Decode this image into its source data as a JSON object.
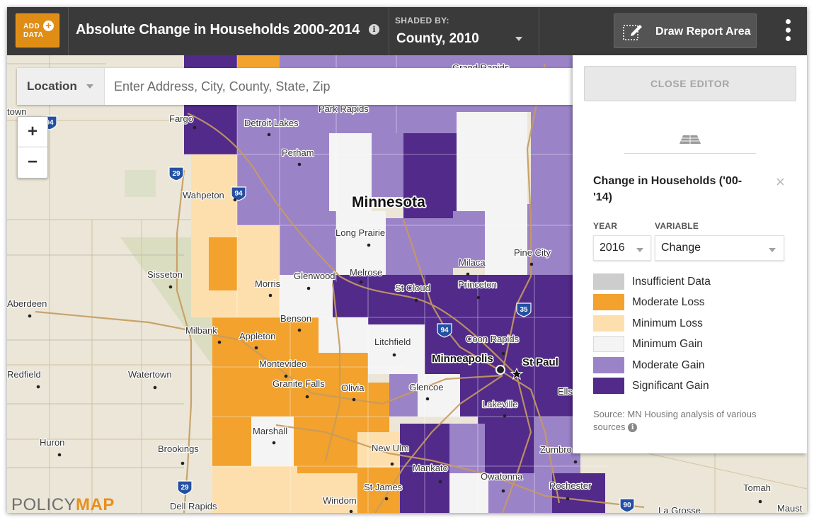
{
  "header": {
    "add_data": {
      "line1": "ADD",
      "line2": "DATA"
    },
    "title": "Absolute Change in Households 2000-2014",
    "shaded_by_label": "SHADED BY:",
    "shaded_by_value": "County, 2010",
    "draw_report_label": "Draw Report Area"
  },
  "search": {
    "location_label": "Location",
    "placeholder": "Enter Address, City, County, State, Zip"
  },
  "zoom": {
    "in_label": "+",
    "out_label": "−"
  },
  "panel": {
    "close_editor_label": "CLOSE EDITOR",
    "legend_title": "Change in Households ('00-'14)",
    "close_symbol": "×",
    "year_label": "YEAR",
    "year_value": "2016",
    "variable_label": "VARIABLE",
    "variable_value": "Change",
    "legend": [
      {
        "label": "Insufficient Data",
        "color": "#cdcdcd"
      },
      {
        "label": "Moderate Loss",
        "color": "#f2a22d"
      },
      {
        "label": "Minimum Loss",
        "color": "#fddfae"
      },
      {
        "label": "Minimum Gain",
        "color": "#f5f4f4"
      },
      {
        "label": "Moderate Gain",
        "color": "#9b83c8"
      },
      {
        "label": "Significant Gain",
        "color": "#512a8a"
      }
    ],
    "source": "Source: MN Housing analysis of various sources"
  },
  "map": {
    "state_label": "Minnesota",
    "places": [
      "Fargo",
      "Detroit Lakes",
      "Park Rapids",
      "Grand Rapids",
      "Perham",
      "Wahpeton",
      "Long Prairie",
      "Sisseton",
      "Morris",
      "Glenwood",
      "Melrose",
      "St Cloud",
      "Milaca",
      "Princeton",
      "Pine City",
      "Aberdeen",
      "Benson",
      "Milbank",
      "Appleton",
      "Litchfield",
      "Coon Rapids",
      "Minneapolis",
      "St Paul",
      "Redfield",
      "Watertown",
      "Montevideo",
      "Granite Falls",
      "Olivia",
      "Glencoe",
      "Lakeville",
      "Marshall",
      "New Ulm",
      "Huron",
      "Brookings",
      "Mankato",
      "Owatonna",
      "Zumbro",
      "Rochester",
      "St James",
      "Windom",
      "Dell Rapids",
      "Tomah",
      "La Grosse",
      "Maust",
      "Ells",
      "town"
    ],
    "highways": [
      "29",
      "94",
      "94",
      "35",
      "29",
      "90",
      "94"
    ]
  },
  "logo": {
    "part1": "POLICY",
    "part2": "MAP"
  },
  "icons": [
    "plus-circle-icon",
    "info-icon",
    "chevron-down-icon",
    "draw-area-icon",
    "kebab-menu-icon",
    "drag-handle-icon",
    "close-icon",
    "capital-star-icon"
  ]
}
